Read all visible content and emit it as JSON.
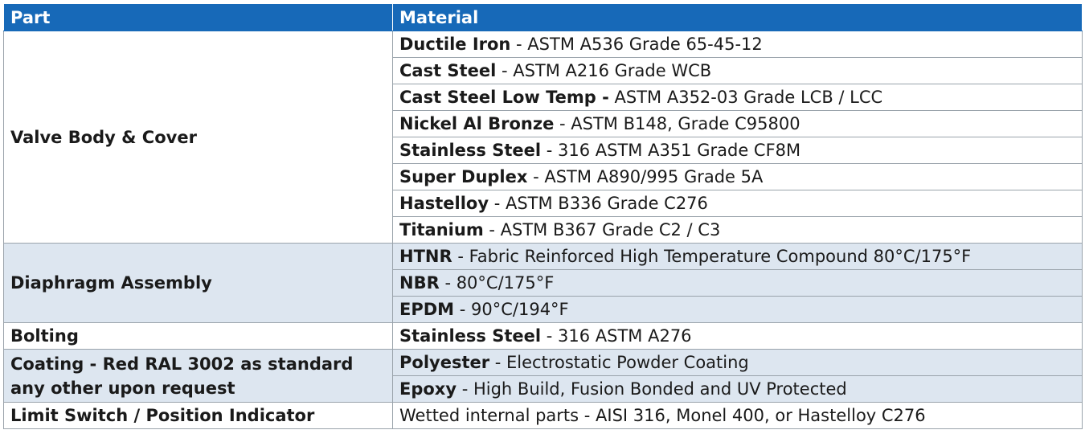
{
  "header": {
    "part": "Part",
    "material": "Material"
  },
  "groups": [
    {
      "part": "Valve Body & Cover",
      "rows": [
        {
          "name": "Ductile Iron",
          "spec": " - ASTM A536 Grade 65-45-12"
        },
        {
          "name": "Cast Steel",
          "spec": " - ASTM A216 Grade WCB"
        },
        {
          "name": "Cast Steel Low Temp -",
          "spec": " ASTM A352-03 Grade LCB / LCC"
        },
        {
          "name": "Nickel Al Bronze",
          "spec": " - ASTM B148, Grade C95800"
        },
        {
          "name": "Stainless Steel",
          "spec": " - 316 ASTM A351 Grade CF8M"
        },
        {
          "name": "Super Duplex",
          "spec": " - ASTM A890/995 Grade 5A"
        },
        {
          "name": "Hastelloy",
          "spec": " - ASTM B336 Grade C276"
        },
        {
          "name": "Titanium",
          "spec": " - ASTM B367 Grade C2 / C3"
        }
      ]
    },
    {
      "part": "Diaphragm Assembly",
      "rows": [
        {
          "name": "HTNR",
          "spec": " - Fabric Reinforced High Temperature Compound 80°C/175°F"
        },
        {
          "name": "NBR",
          "spec": " - 80°C/175°F"
        },
        {
          "name": "EPDM",
          "spec": " - 90°C/194°F"
        }
      ]
    },
    {
      "part": "Bolting",
      "rows": [
        {
          "name": "Stainless Steel",
          "spec": " - 316 ASTM A276"
        }
      ]
    },
    {
      "part_line1": "Coating - Red RAL 3002 as standard",
      "part_line2": "any other upon request",
      "rows": [
        {
          "name": "Polyester",
          "spec": " - Electrostatic Powder Coating"
        },
        {
          "name": "Epoxy",
          "spec": " - High Build, Fusion Bonded and UV Protected"
        }
      ]
    },
    {
      "part": "Limit Switch / Position Indicator",
      "rows": [
        {
          "name": "",
          "spec": "Wetted internal parts - AISI 316, Monel 400, or Hastelloy C276"
        }
      ]
    }
  ],
  "colors": {
    "header_bg": "#1769b8",
    "shade_bg": "#dde6f0",
    "border": "#9aa3ab"
  }
}
